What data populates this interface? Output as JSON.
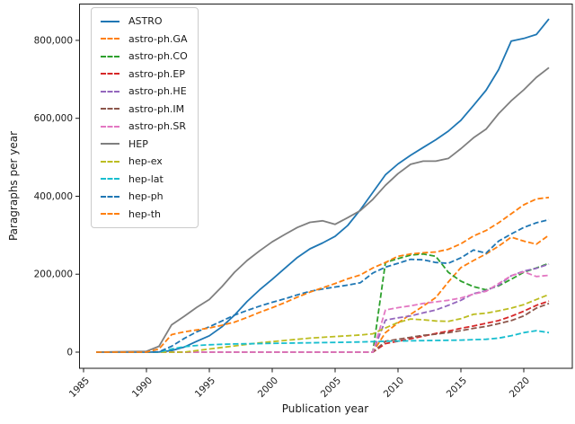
{
  "figure": {
    "background": "#ffffff",
    "axis_color": "#1a1a1a",
    "legend_border_color": "#cbcbcb"
  },
  "chart_data": {
    "type": "line",
    "title": "",
    "xlabel": "Publication year",
    "ylabel": "Paragraphs per year",
    "x_ticks": [
      1985,
      1990,
      1995,
      2000,
      2005,
      2010,
      2015,
      2020
    ],
    "y_ticks": [
      0,
      200000,
      400000,
      600000,
      800000
    ],
    "y_tick_labels": [
      "0",
      "200,000",
      "400,000",
      "600,000",
      "800,000"
    ],
    "xlim": [
      1984.6,
      2023.9
    ],
    "ylim": [
      -41500,
      894000
    ],
    "grid": false,
    "legend_position": "upper left",
    "series": [
      {
        "name": "ASTRO",
        "color": "#1f77b4",
        "style": "solid",
        "points": [
          [
            1986,
            0
          ],
          [
            1990,
            0
          ],
          [
            1991,
            500
          ],
          [
            1992,
            4000
          ],
          [
            1993,
            13000
          ],
          [
            1994,
            28000
          ],
          [
            1995,
            42000
          ],
          [
            1996,
            65000
          ],
          [
            1997,
            95000
          ],
          [
            1998,
            130000
          ],
          [
            1999,
            160000
          ],
          [
            2000,
            187000
          ],
          [
            2001,
            215000
          ],
          [
            2002,
            243000
          ],
          [
            2003,
            265000
          ],
          [
            2004,
            280000
          ],
          [
            2005,
            297000
          ],
          [
            2006,
            325000
          ],
          [
            2007,
            365000
          ],
          [
            2008,
            410000
          ],
          [
            2009,
            455000
          ],
          [
            2010,
            483000
          ],
          [
            2011,
            505000
          ],
          [
            2012,
            525000
          ],
          [
            2013,
            545000
          ],
          [
            2014,
            567000
          ],
          [
            2015,
            595000
          ],
          [
            2016,
            633000
          ],
          [
            2017,
            672000
          ],
          [
            2018,
            725000
          ],
          [
            2019,
            798000
          ],
          [
            2020,
            805000
          ],
          [
            2021,
            815000
          ],
          [
            2022,
            855000
          ]
        ]
      },
      {
        "name": "astro-ph.GA",
        "color": "#ff7f0e",
        "style": "dashed",
        "points": [
          [
            1986,
            0
          ],
          [
            2008,
            0
          ],
          [
            2009,
            50000
          ],
          [
            2010,
            75000
          ],
          [
            2011,
            97000
          ],
          [
            2012,
            118000
          ],
          [
            2013,
            140000
          ],
          [
            2014,
            180000
          ],
          [
            2015,
            217000
          ],
          [
            2016,
            235000
          ],
          [
            2017,
            252000
          ],
          [
            2018,
            272000
          ],
          [
            2019,
            295000
          ],
          [
            2020,
            285000
          ],
          [
            2021,
            277000
          ],
          [
            2022,
            300000
          ]
        ]
      },
      {
        "name": "astro-ph.CO",
        "color": "#2ca02c",
        "style": "dashed",
        "points": [
          [
            1986,
            0
          ],
          [
            2008,
            0
          ],
          [
            2009,
            230000
          ],
          [
            2010,
            240000
          ],
          [
            2011,
            249000
          ],
          [
            2012,
            252000
          ],
          [
            2013,
            246000
          ],
          [
            2014,
            205000
          ],
          [
            2015,
            182000
          ],
          [
            2016,
            168000
          ],
          [
            2017,
            160000
          ],
          [
            2018,
            170000
          ],
          [
            2019,
            187000
          ],
          [
            2020,
            205000
          ],
          [
            2021,
            216000
          ],
          [
            2022,
            228000
          ]
        ]
      },
      {
        "name": "astro-ph.EP",
        "color": "#d62728",
        "style": "dashed",
        "points": [
          [
            1986,
            0
          ],
          [
            2008,
            0
          ],
          [
            2009,
            22000
          ],
          [
            2010,
            28000
          ],
          [
            2011,
            34000
          ],
          [
            2012,
            41000
          ],
          [
            2013,
            48000
          ],
          [
            2014,
            54000
          ],
          [
            2015,
            61000
          ],
          [
            2016,
            67000
          ],
          [
            2017,
            74000
          ],
          [
            2018,
            81000
          ],
          [
            2019,
            92000
          ],
          [
            2020,
            105000
          ],
          [
            2021,
            120000
          ],
          [
            2022,
            131000
          ]
        ]
      },
      {
        "name": "astro-ph.HE",
        "color": "#9467bd",
        "style": "dashed",
        "points": [
          [
            1986,
            0
          ],
          [
            2008,
            0
          ],
          [
            2009,
            82000
          ],
          [
            2010,
            88000
          ],
          [
            2011,
            93000
          ],
          [
            2012,
            101000
          ],
          [
            2013,
            108000
          ],
          [
            2014,
            120000
          ],
          [
            2015,
            133000
          ],
          [
            2016,
            150000
          ],
          [
            2017,
            158000
          ],
          [
            2018,
            172000
          ],
          [
            2019,
            196000
          ],
          [
            2020,
            208000
          ],
          [
            2021,
            215000
          ],
          [
            2022,
            226000
          ]
        ]
      },
      {
        "name": "astro-ph.IM",
        "color": "#8c564b",
        "style": "dashed",
        "points": [
          [
            1986,
            0
          ],
          [
            2008,
            0
          ],
          [
            2009,
            28000
          ],
          [
            2010,
            33000
          ],
          [
            2011,
            38000
          ],
          [
            2012,
            43000
          ],
          [
            2013,
            46000
          ],
          [
            2014,
            50000
          ],
          [
            2015,
            55000
          ],
          [
            2016,
            61000
          ],
          [
            2017,
            66000
          ],
          [
            2018,
            73000
          ],
          [
            2019,
            81000
          ],
          [
            2020,
            93000
          ],
          [
            2021,
            113000
          ],
          [
            2022,
            125000
          ]
        ]
      },
      {
        "name": "astro-ph.SR",
        "color": "#e377c2",
        "style": "dashed",
        "points": [
          [
            1986,
            0
          ],
          [
            2008,
            0
          ],
          [
            2009,
            108000
          ],
          [
            2010,
            114000
          ],
          [
            2011,
            119000
          ],
          [
            2012,
            125000
          ],
          [
            2013,
            129000
          ],
          [
            2014,
            133000
          ],
          [
            2015,
            139000
          ],
          [
            2016,
            149000
          ],
          [
            2017,
            156000
          ],
          [
            2018,
            176000
          ],
          [
            2019,
            196000
          ],
          [
            2020,
            206000
          ],
          [
            2021,
            194000
          ],
          [
            2022,
            197000
          ]
        ]
      },
      {
        "name": "HEP",
        "color": "#7f7f7f",
        "style": "solid",
        "points": [
          [
            1986,
            0
          ],
          [
            1990,
            2000
          ],
          [
            1991,
            15000
          ],
          [
            1992,
            70000
          ],
          [
            1993,
            92000
          ],
          [
            1994,
            115000
          ],
          [
            1995,
            135000
          ],
          [
            1996,
            168000
          ],
          [
            1997,
            205000
          ],
          [
            1998,
            235000
          ],
          [
            1999,
            260000
          ],
          [
            2000,
            283000
          ],
          [
            2001,
            302000
          ],
          [
            2002,
            320000
          ],
          [
            2003,
            333000
          ],
          [
            2004,
            337000
          ],
          [
            2005,
            328000
          ],
          [
            2006,
            345000
          ],
          [
            2007,
            363000
          ],
          [
            2008,
            392000
          ],
          [
            2009,
            428000
          ],
          [
            2010,
            458000
          ],
          [
            2011,
            482000
          ],
          [
            2012,
            490000
          ],
          [
            2013,
            490000
          ],
          [
            2014,
            497000
          ],
          [
            2015,
            522000
          ],
          [
            2016,
            550000
          ],
          [
            2017,
            572000
          ],
          [
            2018,
            612000
          ],
          [
            2019,
            645000
          ],
          [
            2020,
            673000
          ],
          [
            2021,
            705000
          ],
          [
            2022,
            730000
          ]
        ]
      },
      {
        "name": "hep-ex",
        "color": "#bcbd22",
        "style": "dashed",
        "points": [
          [
            1986,
            0
          ],
          [
            1993,
            0
          ],
          [
            1994,
            4000
          ],
          [
            1995,
            8000
          ],
          [
            1996,
            12000
          ],
          [
            1997,
            16000
          ],
          [
            1998,
            20000
          ],
          [
            1999,
            24000
          ],
          [
            2000,
            27000
          ],
          [
            2001,
            30000
          ],
          [
            2002,
            33000
          ],
          [
            2003,
            36000
          ],
          [
            2004,
            38000
          ],
          [
            2005,
            40000
          ],
          [
            2006,
            42000
          ],
          [
            2007,
            44000
          ],
          [
            2008,
            47000
          ],
          [
            2009,
            62000
          ],
          [
            2010,
            76000
          ],
          [
            2011,
            85000
          ],
          [
            2012,
            83000
          ],
          [
            2013,
            80000
          ],
          [
            2014,
            79000
          ],
          [
            2015,
            86000
          ],
          [
            2016,
            97000
          ],
          [
            2017,
            100000
          ],
          [
            2018,
            106000
          ],
          [
            2019,
            113000
          ],
          [
            2020,
            122000
          ],
          [
            2021,
            135000
          ],
          [
            2022,
            148000
          ]
        ]
      },
      {
        "name": "hep-lat",
        "color": "#17becf",
        "style": "dashed",
        "points": [
          [
            1986,
            0
          ],
          [
            1991,
            0
          ],
          [
            1992,
            8000
          ],
          [
            1993,
            14000
          ],
          [
            1994,
            17000
          ],
          [
            1995,
            19000
          ],
          [
            1996,
            20000
          ],
          [
            1997,
            21000
          ],
          [
            1999,
            22000
          ],
          [
            2001,
            23000
          ],
          [
            2003,
            24000
          ],
          [
            2005,
            25000
          ],
          [
            2007,
            26000
          ],
          [
            2009,
            28000
          ],
          [
            2011,
            29000
          ],
          [
            2013,
            30000
          ],
          [
            2015,
            31000
          ],
          [
            2016,
            32000
          ],
          [
            2017,
            33000
          ],
          [
            2018,
            36000
          ],
          [
            2019,
            42000
          ],
          [
            2020,
            50000
          ],
          [
            2021,
            55000
          ],
          [
            2022,
            50000
          ]
        ]
      },
      {
        "name": "hep-ph",
        "color": "#1f77b4",
        "style": "dashed",
        "points": [
          [
            1986,
            0
          ],
          [
            1990,
            0
          ],
          [
            1991,
            1000
          ],
          [
            1992,
            15000
          ],
          [
            1993,
            35000
          ],
          [
            1994,
            52000
          ],
          [
            1995,
            65000
          ],
          [
            1996,
            80000
          ],
          [
            1997,
            95000
          ],
          [
            1998,
            107000
          ],
          [
            1999,
            118000
          ],
          [
            2000,
            128000
          ],
          [
            2001,
            137000
          ],
          [
            2002,
            147000
          ],
          [
            2003,
            156000
          ],
          [
            2004,
            162000
          ],
          [
            2005,
            167000
          ],
          [
            2006,
            172000
          ],
          [
            2007,
            178000
          ],
          [
            2008,
            203000
          ],
          [
            2009,
            218000
          ],
          [
            2010,
            228000
          ],
          [
            2011,
            238000
          ],
          [
            2012,
            237000
          ],
          [
            2013,
            230000
          ],
          [
            2014,
            228000
          ],
          [
            2015,
            242000
          ],
          [
            2016,
            262000
          ],
          [
            2017,
            254000
          ],
          [
            2018,
            285000
          ],
          [
            2019,
            303000
          ],
          [
            2020,
            320000
          ],
          [
            2021,
            332000
          ],
          [
            2022,
            340000
          ]
        ]
      },
      {
        "name": "hep-th",
        "color": "#ff7f0e",
        "style": "dashed",
        "points": [
          [
            1986,
            0
          ],
          [
            1990,
            0
          ],
          [
            1991,
            8000
          ],
          [
            1992,
            45000
          ],
          [
            1993,
            52000
          ],
          [
            1994,
            57000
          ],
          [
            1995,
            62000
          ],
          [
            1996,
            69000
          ],
          [
            1997,
            77000
          ],
          [
            1998,
            89000
          ],
          [
            1999,
            102000
          ],
          [
            2000,
            114000
          ],
          [
            2001,
            127000
          ],
          [
            2002,
            141000
          ],
          [
            2003,
            154000
          ],
          [
            2004,
            165000
          ],
          [
            2005,
            176000
          ],
          [
            2006,
            188000
          ],
          [
            2007,
            198000
          ],
          [
            2008,
            216000
          ],
          [
            2009,
            230000
          ],
          [
            2010,
            246000
          ],
          [
            2011,
            252000
          ],
          [
            2012,
            255000
          ],
          [
            2013,
            257000
          ],
          [
            2014,
            264000
          ],
          [
            2015,
            278000
          ],
          [
            2016,
            298000
          ],
          [
            2017,
            312000
          ],
          [
            2018,
            332000
          ],
          [
            2019,
            355000
          ],
          [
            2020,
            378000
          ],
          [
            2021,
            393000
          ],
          [
            2022,
            397000
          ]
        ]
      }
    ]
  }
}
